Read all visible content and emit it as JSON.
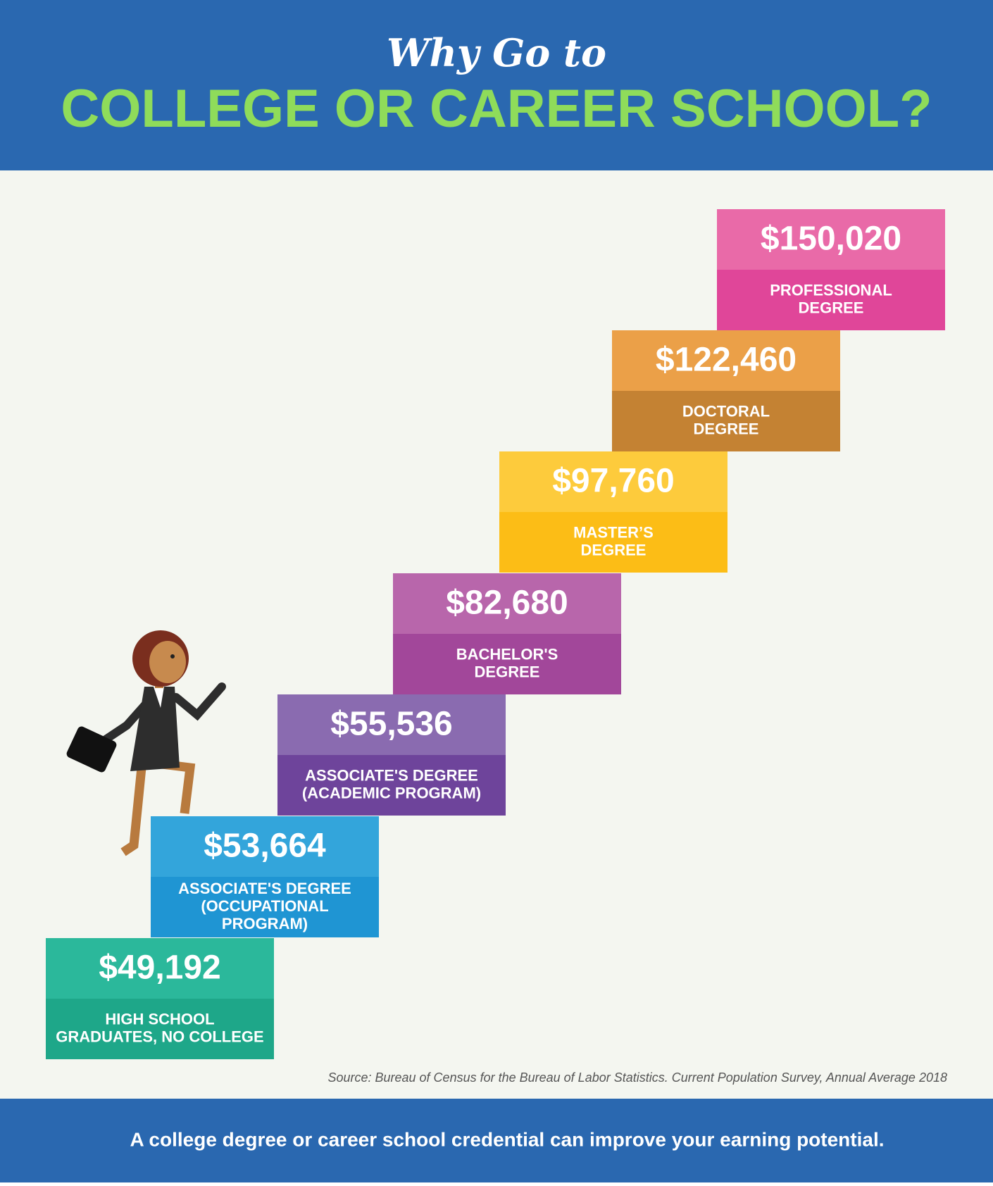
{
  "header": {
    "kicker": "Why Go to",
    "title": "COLLEGE OR CAREER SCHOOL?"
  },
  "steps": [
    {
      "value": "$49,192",
      "label": [
        "HIGH SCHOOL",
        "GRADUATES, NO COLLEGE"
      ]
    },
    {
      "value": "$53,664",
      "label": [
        "ASSOCIATE'S DEGREE",
        "(OCCUPATIONAL",
        "PROGRAM)"
      ]
    },
    {
      "value": "$55,536",
      "label": [
        "ASSOCIATE'S DEGREE",
        "(ACADEMIC PROGRAM)"
      ]
    },
    {
      "value": "$82,680",
      "label": [
        "BACHELOR'S",
        "DEGREE"
      ]
    },
    {
      "value": "$97,760",
      "label": [
        "MASTER’S",
        "DEGREE"
      ]
    },
    {
      "value": "$122,460",
      "label": [
        "DOCTORAL",
        "DEGREE"
      ]
    },
    {
      "value": "$150,020",
      "label": [
        "PROFESSIONAL",
        "DEGREE"
      ]
    }
  ],
  "source": "Source: Bureau of Census for the Bureau of Labor Statistics. Current Population Survey, Annual Average 2018",
  "footer": "A college degree or career school credential can improve your earning potential."
}
